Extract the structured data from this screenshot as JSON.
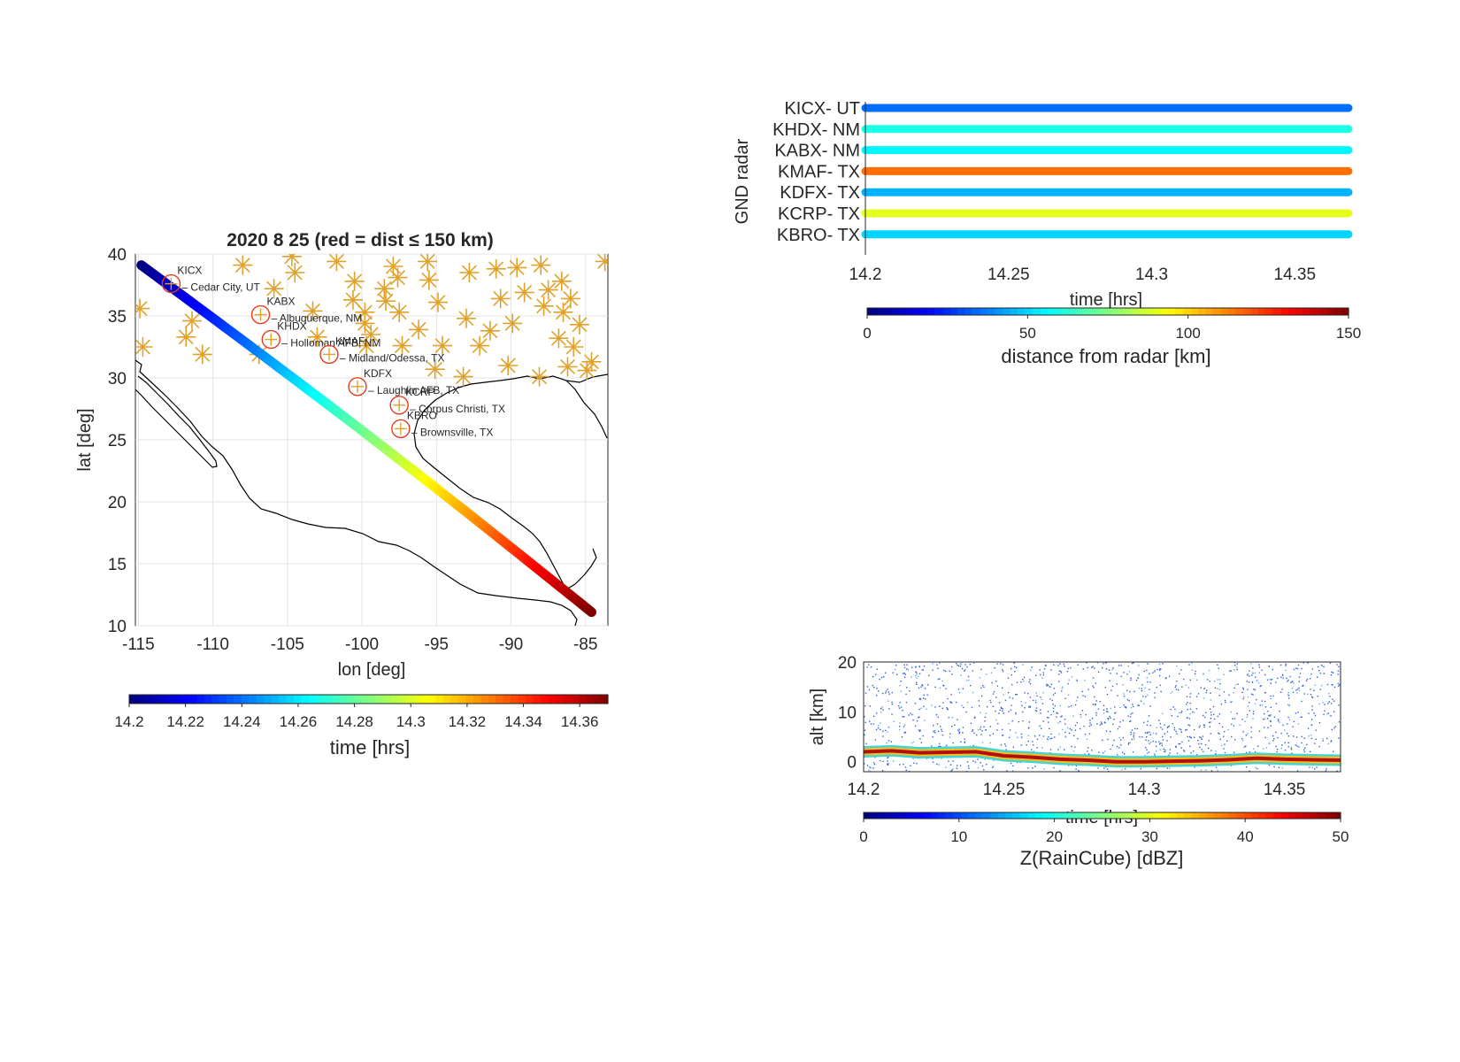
{
  "chart_data": [
    {
      "type": "scatter",
      "title": "2020     8    25  (red = dist ≤ 150 km)",
      "xlabel": "lon  [deg]",
      "ylabel": "lat  [deg]",
      "xlim": [
        -115.2,
        -83.5
      ],
      "ylim": [
        10,
        40
      ],
      "xticks": [
        -115,
        -110,
        -105,
        -100,
        -95,
        -90,
        -85
      ],
      "yticks": [
        10,
        15,
        20,
        25,
        30,
        35,
        40
      ],
      "grid": true,
      "colorbar": {
        "label": "time  [hrs]",
        "range": [
          14.2,
          14.37
        ],
        "ticks": [
          14.2,
          14.22,
          14.24,
          14.26,
          14.28,
          14.3,
          14.32,
          14.34,
          14.36
        ]
      },
      "track": {
        "start": {
          "lon": -114.8,
          "lat": 39.1,
          "time": 14.2
        },
        "end": {
          "lon": -84.6,
          "lat": 11.1,
          "time": 14.37
        }
      },
      "selected_radars": [
        {
          "code": "KICX",
          "name": "Cedar City, UT",
          "lon": -112.8,
          "lat": 37.6
        },
        {
          "code": "KABX",
          "name": "Albuquerque, NM",
          "lon": -106.8,
          "lat": 35.1
        },
        {
          "code": "KHDX",
          "name": "Holloman AFB, NM",
          "lon": -106.1,
          "lat": 33.1
        },
        {
          "code": "KMAF",
          "name": "Midland/Odessa, TX",
          "lon": -102.2,
          "lat": 31.9
        },
        {
          "code": "KDFX",
          "name": "Laughlin AFB, TX",
          "lon": -100.3,
          "lat": 29.3
        },
        {
          "code": "KCRP",
          "name": "Corpus Christi, TX",
          "lon": -97.5,
          "lat": 27.8
        },
        {
          "code": "KBRO",
          "name": "Brownsville, TX",
          "lon": -97.4,
          "lat": 25.9
        }
      ],
      "other_radars": [
        [
          -114.9,
          35.6
        ],
        [
          -114.7,
          32.5
        ],
        [
          -111.4,
          34.6
        ],
        [
          -111.8,
          33.3
        ],
        [
          -110.7,
          31.9
        ],
        [
          -108.0,
          39.1
        ],
        [
          -106.9,
          31.9
        ],
        [
          -105.9,
          37.2
        ],
        [
          -104.7,
          39.8
        ],
        [
          -104.5,
          38.5
        ],
        [
          -103.3,
          35.4
        ],
        [
          -103.0,
          33.3
        ],
        [
          -101.7,
          39.4
        ],
        [
          -100.5,
          37.8
        ],
        [
          -99.8,
          35.3
        ],
        [
          -99.4,
          33.5
        ],
        [
          -99.7,
          32.6
        ],
        [
          -100.6,
          36.3
        ],
        [
          -98.4,
          36.2
        ],
        [
          -97.5,
          35.3
        ],
        [
          -97.3,
          32.6
        ],
        [
          -97.6,
          38.1
        ],
        [
          -97.9,
          39.0
        ],
        [
          -98.5,
          37.2
        ],
        [
          -99.8,
          34.4
        ],
        [
          -95.6,
          39.4
        ],
        [
          -95.5,
          37.9
        ],
        [
          -94.9,
          36.1
        ],
        [
          -94.6,
          32.6
        ],
        [
          -95.1,
          30.7
        ],
        [
          -93.2,
          30.1
        ],
        [
          -92.1,
          32.6
        ],
        [
          -91.0,
          38.8
        ],
        [
          -90.7,
          36.4
        ],
        [
          -89.9,
          34.4
        ],
        [
          -89.1,
          36.9
        ],
        [
          -88.0,
          39.1
        ],
        [
          -87.8,
          35.8
        ],
        [
          -86.8,
          33.2
        ],
        [
          -87.5,
          37.1
        ],
        [
          -86.5,
          35.3
        ],
        [
          -85.8,
          32.5
        ],
        [
          -85.4,
          34.3
        ],
        [
          -86.0,
          36.4
        ],
        [
          -84.9,
          30.6
        ],
        [
          -83.7,
          39.4
        ],
        [
          -84.6,
          31.3
        ],
        [
          -86.2,
          30.9
        ],
        [
          -88.1,
          30.1
        ],
        [
          -90.2,
          31.0
        ],
        [
          -93.0,
          34.8
        ],
        [
          -91.4,
          33.8
        ],
        [
          -89.6,
          38.9
        ],
        [
          -92.8,
          38.5
        ],
        [
          -86.6,
          37.8
        ],
        [
          -96.2,
          33.9
        ]
      ]
    },
    {
      "type": "scatter",
      "xlabel": "time [hrs]",
      "ylabel": "GND radar",
      "xlim": [
        14.2,
        14.37
      ],
      "xticks": [
        14.2,
        14.25,
        14.3,
        14.35
      ],
      "categories": [
        "KICX-  UT",
        "KHDX-  NM",
        "KABX-  NM",
        "KMAF-  TX",
        "KDFX-  TX",
        "KCRP-  TX",
        "KBRO-  TX"
      ],
      "distances_km": [
        35,
        60,
        55,
        115,
        45,
        90,
        50
      ],
      "colorbar": {
        "label": "distance from radar [km]",
        "range": [
          0,
          150
        ],
        "ticks": [
          0,
          50,
          100,
          150
        ]
      }
    },
    {
      "type": "heatmap",
      "xlabel": "time [hrs]",
      "ylabel": "alt [km]",
      "xlim": [
        14.2,
        14.37
      ],
      "ylim": [
        -2,
        20
      ],
      "xticks": [
        14.2,
        14.25,
        14.3,
        14.35
      ],
      "yticks": [
        0,
        10,
        20
      ],
      "colorbar": {
        "label": "Z(RainCube) [dBZ]",
        "range": [
          0,
          50
        ],
        "ticks": [
          0,
          10,
          20,
          30,
          40,
          50
        ]
      },
      "surface_echo": [
        [
          14.2,
          2.0
        ],
        [
          14.21,
          2.2
        ],
        [
          14.22,
          1.8
        ],
        [
          14.23,
          1.9
        ],
        [
          14.24,
          2.0
        ],
        [
          14.245,
          1.6
        ],
        [
          14.25,
          1.2
        ],
        [
          14.26,
          0.9
        ],
        [
          14.27,
          0.5
        ],
        [
          14.28,
          0.3
        ],
        [
          14.29,
          0.0
        ],
        [
          14.3,
          0.0
        ],
        [
          14.31,
          0.1
        ],
        [
          14.32,
          0.2
        ],
        [
          14.33,
          0.4
        ],
        [
          14.34,
          0.7
        ],
        [
          14.35,
          0.5
        ],
        [
          14.36,
          0.4
        ],
        [
          14.37,
          0.3
        ]
      ]
    }
  ]
}
